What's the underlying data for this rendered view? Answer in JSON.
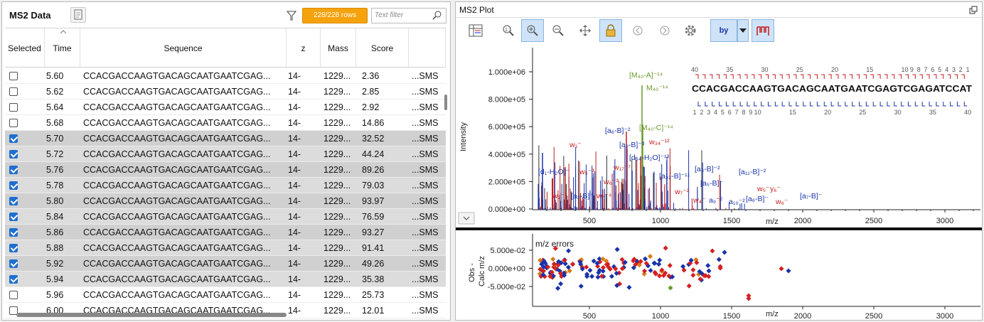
{
  "left_panel": {
    "title": "MS2 Data",
    "rows_badge": "228/228 rows",
    "filter_placeholder": "Text filter",
    "columns": [
      "Selected",
      "Time",
      "Sequence",
      "z",
      "Mass",
      "Score"
    ],
    "rows": [
      {
        "selected": false,
        "time": "5.60",
        "seq": "CCACGACCAAGTGACAGCAATGAATCGAG...",
        "z": "14-",
        "mass": "1229...",
        "score": "2.36",
        "extra": "...SMS"
      },
      {
        "selected": false,
        "time": "5.62",
        "seq": "CCACGACCAAGTGACAGCAATGAATCGAG...",
        "z": "14-",
        "mass": "1229...",
        "score": "2.85",
        "extra": "...SMS"
      },
      {
        "selected": false,
        "time": "5.64",
        "seq": "CCACGACCAAGTGACAGCAATGAATCGAG...",
        "z": "14-",
        "mass": "1229...",
        "score": "2.92",
        "extra": "...SMS"
      },
      {
        "selected": false,
        "time": "5.68",
        "seq": "CCACGACCAAGTGACAGCAATGAATCGAG...",
        "z": "14-",
        "mass": "1229...",
        "score": "14.86",
        "extra": "...SMS"
      },
      {
        "selected": true,
        "time": "5.70",
        "seq": "CCACGACCAAGTGACAGCAATGAATCGAG...",
        "z": "14-",
        "mass": "1229...",
        "score": "32.52",
        "extra": "...SMS"
      },
      {
        "selected": true,
        "time": "5.72",
        "seq": "CCACGACCAAGTGACAGCAATGAATCGAG...",
        "z": "14-",
        "mass": "1229...",
        "score": "44.24",
        "extra": "...SMS"
      },
      {
        "selected": true,
        "time": "5.76",
        "seq": "CCACGACCAAGTGACAGCAATGAATCGAG...",
        "z": "14-",
        "mass": "1229...",
        "score": "89.26",
        "extra": "...SMS"
      },
      {
        "selected": true,
        "time": "5.78",
        "seq": "CCACGACCAAGTGACAGCAATGAATCGAG...",
        "z": "14-",
        "mass": "1229...",
        "score": "79.03",
        "extra": "...SMS"
      },
      {
        "selected": true,
        "time": "5.80",
        "seq": "CCACGACCAAGTGACAGCAATGAATCGAG...",
        "z": "14-",
        "mass": "1229...",
        "score": "93.97",
        "extra": "...SMS"
      },
      {
        "selected": true,
        "time": "5.84",
        "seq": "CCACGACCAAGTGACAGCAATGAATCGAG...",
        "z": "14-",
        "mass": "1229...",
        "score": "76.59",
        "extra": "...SMS"
      },
      {
        "selected": true,
        "time": "5.86",
        "seq": "CCACGACCAAGTGACAGCAATGAATCGAG...",
        "z": "14-",
        "mass": "1229...",
        "score": "93.27",
        "extra": "...SMS"
      },
      {
        "selected": true,
        "time": "5.88",
        "seq": "CCACGACCAAGTGACAGCAATGAATCGAG...",
        "z": "14-",
        "mass": "1229...",
        "score": "91.41",
        "extra": "...SMS"
      },
      {
        "selected": true,
        "time": "5.92",
        "seq": "CCACGACCAAGTGACAGCAATGAATCGAG...",
        "z": "14-",
        "mass": "1229...",
        "score": "49.26",
        "extra": "...SMS"
      },
      {
        "selected": true,
        "time": "5.94",
        "seq": "CCACGACCAAGTGACAGCAATGAATCGAG...",
        "z": "14-",
        "mass": "1229...",
        "score": "35.38",
        "extra": "...SMS"
      },
      {
        "selected": false,
        "time": "5.96",
        "seq": "CCACGACCAAGTGACAGCAATGAATCGAG...",
        "z": "14-",
        "mass": "1229...",
        "score": "25.73",
        "extra": "...SMS"
      },
      {
        "selected": false,
        "time": "6.00",
        "seq": "CCACGACCAAGTGACAGCAATGAATCGAG...",
        "z": "14-",
        "mass": "1229...",
        "score": "12.01",
        "extra": "...SMS"
      }
    ]
  },
  "right_panel": {
    "title": "MS2 Plot",
    "toolbar_icons": [
      "table-icon",
      "zoom-reset-icon",
      "zoom-in-icon",
      "zoom-out-icon",
      "pan-icon",
      "lock-icon",
      "prev-icon",
      "next-icon",
      "settings-icon",
      "ion-type-icon",
      "dropdown-icon",
      "annotate-icon"
    ],
    "ion_type_label": "by",
    "spectrum": {
      "ylabel": "Intensity",
      "xlabel": "m/z",
      "yticks": [
        "1.000e+06",
        "8.000e+05",
        "6.000e+05",
        "4.000e+05",
        "2.000e+05",
        "0.000e+00"
      ],
      "xticks": [
        "500",
        "1000",
        "1500",
        "2000",
        "2500",
        "3000"
      ],
      "sequence": "CCACGACCAAGTGACAGCAATGAATCGAGTCGAGATCCAT",
      "top_ladder": [
        "40",
        "35",
        "30",
        "25",
        "20",
        "15",
        "10",
        "9",
        "8",
        "7",
        "6",
        "5",
        "4",
        "3",
        "2",
        "1"
      ],
      "bottom_ladder": [
        "1",
        "2",
        "3",
        "4",
        "5",
        "6",
        "7",
        "8",
        "9",
        "10",
        "15",
        "20",
        "25",
        "30",
        "35",
        "40"
      ],
      "colors": {
        "precursor": "#6a9a2a",
        "w": "#c21d1d",
        "b": "#1a33a8",
        "grey": "#333333"
      }
    },
    "errors": {
      "title": "m/z errors",
      "ylabel_line1": "Obs -",
      "ylabel_line2": "Calc m/z",
      "yticks": [
        "5.000e-02",
        "0.000e+00",
        "-5.000e-02"
      ],
      "xticks": [
        "500",
        "1000",
        "1500",
        "2000",
        "2500",
        "3000"
      ],
      "xlabel": "m/z"
    }
  }
}
